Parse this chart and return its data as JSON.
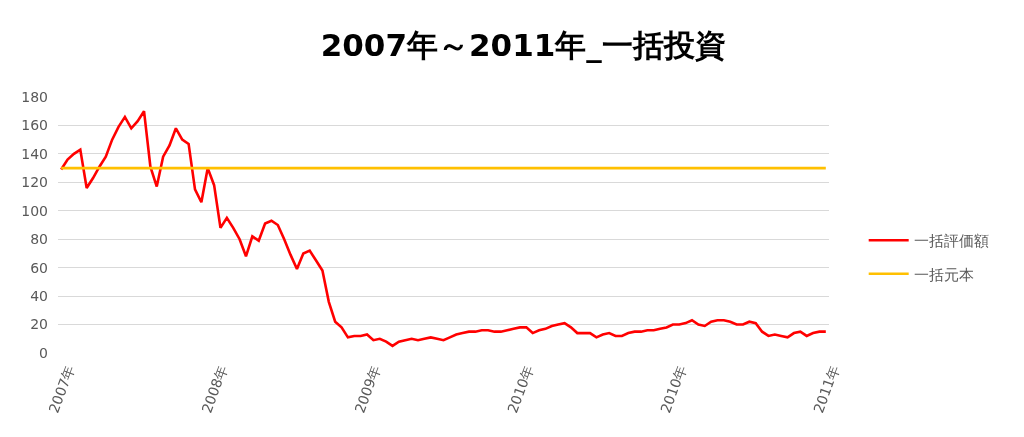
{
  "chart_data": {
    "type": "line",
    "title": "2007年～2011年_一括投資",
    "categories": [
      "2007年",
      null,
      null,
      null,
      null,
      null,
      null,
      null,
      null,
      null,
      null,
      null,
      null,
      null,
      null,
      null,
      null,
      null,
      null,
      null,
      null,
      null,
      null,
      null,
      "2008年",
      null,
      null,
      null,
      null,
      null,
      null,
      null,
      null,
      null,
      null,
      null,
      null,
      null,
      null,
      null,
      null,
      null,
      null,
      null,
      null,
      null,
      null,
      null,
      "2009年",
      null,
      null,
      null,
      null,
      null,
      null,
      null,
      null,
      null,
      null,
      null,
      null,
      null,
      null,
      null,
      null,
      null,
      null,
      null,
      null,
      null,
      null,
      null,
      "2010年",
      null,
      null,
      null,
      null,
      null,
      null,
      null,
      null,
      null,
      null,
      null,
      null,
      null,
      null,
      null,
      null,
      null,
      null,
      null,
      null,
      null,
      null,
      null,
      "2010年",
      null,
      null,
      null,
      null,
      null,
      null,
      null,
      null,
      null,
      null,
      null,
      null,
      null,
      null,
      null,
      null,
      null,
      null,
      null,
      null,
      null,
      null,
      null,
      "2011年"
    ],
    "series": [
      {
        "name": "一括評価額",
        "color": "#ff0000",
        "values": [
          129,
          136,
          140,
          143,
          116,
          123,
          131,
          138,
          150,
          159,
          166,
          158,
          163,
          170,
          131,
          117,
          138,
          146,
          158,
          150,
          147,
          115,
          106,
          130,
          118,
          88,
          95,
          88,
          80,
          68,
          82,
          79,
          91,
          93,
          90,
          80,
          69,
          59,
          70,
          72,
          65,
          58,
          36,
          22,
          18,
          11,
          12,
          12,
          13,
          9,
          10,
          8,
          5,
          8,
          9,
          10,
          9,
          10,
          11,
          10,
          9,
          11,
          13,
          14,
          15,
          15,
          16,
          16,
          15,
          15,
          16,
          17,
          18,
          18,
          14,
          16,
          17,
          19,
          20,
          21,
          18,
          14,
          14,
          14,
          11,
          13,
          14,
          12,
          12,
          14,
          15,
          15,
          16,
          16,
          17,
          18,
          20,
          20,
          21,
          23,
          20,
          19,
          22,
          23,
          23,
          22,
          20,
          20,
          22,
          21,
          15,
          12,
          13,
          12,
          11,
          14,
          15,
          12,
          14,
          15,
          15
        ]
      },
      {
        "name": "一括元本",
        "color": "#ffc000",
        "values": [
          130,
          130,
          130,
          130,
          130,
          130,
          130,
          130,
          130,
          130,
          130,
          130,
          130,
          130,
          130,
          130,
          130,
          130,
          130,
          130,
          130,
          130,
          130,
          130,
          130,
          130,
          130,
          130,
          130,
          130,
          130,
          130,
          130,
          130,
          130,
          130,
          130,
          130,
          130,
          130,
          130,
          130,
          130,
          130,
          130,
          130,
          130,
          130,
          130,
          130,
          130,
          130,
          130,
          130,
          130,
          130,
          130,
          130,
          130,
          130,
          130,
          130,
          130,
          130,
          130,
          130,
          130,
          130,
          130,
          130,
          130,
          130,
          130,
          130,
          130,
          130,
          130,
          130,
          130,
          130,
          130,
          130,
          130,
          130,
          130,
          130,
          130,
          130,
          130,
          130,
          130,
          130,
          130,
          130,
          130,
          130,
          130,
          130,
          130,
          130,
          130,
          130,
          130,
          130,
          130,
          130,
          130,
          130,
          130,
          130,
          130,
          130,
          130,
          130,
          130,
          130,
          130,
          130,
          130,
          130,
          130
        ]
      }
    ],
    "ylim": [
      0,
      180
    ],
    "yticks": [
      0,
      20,
      40,
      60,
      80,
      100,
      120,
      140,
      160,
      180
    ],
    "grid": "y",
    "legend": "right"
  }
}
